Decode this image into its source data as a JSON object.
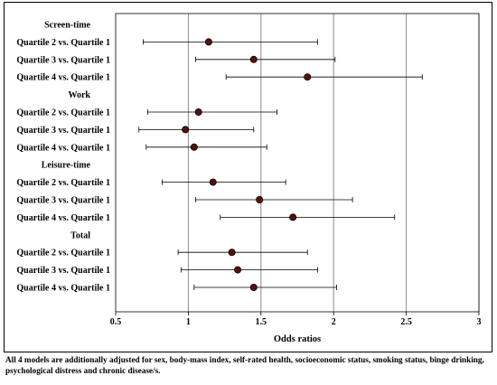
{
  "chart_data": {
    "type": "forest",
    "xlabel": "Odds ratios",
    "xlim": [
      0.5,
      3
    ],
    "xticks": [
      "0.5",
      "1",
      "1.5",
      "2",
      "2.5",
      "3"
    ],
    "reference_line": 1,
    "grid": "vertical",
    "marker_color": "#5a0f0f",
    "rows": [
      {
        "label": "Screen-time",
        "header": true
      },
      {
        "label": "Quartile 2 vs. Quartile 1",
        "or": 1.14,
        "lo": 0.69,
        "hi": 1.89
      },
      {
        "label": "Quartile 3 vs. Quartile 1",
        "or": 1.45,
        "lo": 1.05,
        "hi": 2.01
      },
      {
        "label": "Quartile 4 vs. Quartile 1",
        "or": 1.82,
        "lo": 1.26,
        "hi": 2.61
      },
      {
        "label": "Work",
        "header": true
      },
      {
        "label": "Quartile 2 vs. Quartile 1",
        "or": 1.07,
        "lo": 0.72,
        "hi": 1.61
      },
      {
        "label": "Quartile 3 vs. Quartile 1",
        "or": 0.98,
        "lo": 0.66,
        "hi": 1.45
      },
      {
        "label": "Quartile 4 vs. Quartile 1",
        "or": 1.04,
        "lo": 0.71,
        "hi": 1.54
      },
      {
        "label": "Leisure-time",
        "header": true
      },
      {
        "label": "Quartile 2 vs. Quartile 1",
        "or": 1.17,
        "lo": 0.82,
        "hi": 1.67
      },
      {
        "label": "Quartile 3 vs. Quartile 1",
        "or": 1.49,
        "lo": 1.05,
        "hi": 2.13
      },
      {
        "label": "Quartile 4 vs. Quartile 1",
        "or": 1.72,
        "lo": 1.22,
        "hi": 2.42
      },
      {
        "label": "Total",
        "header": true
      },
      {
        "label": "Quartile 2 vs. Quartile 1",
        "or": 1.3,
        "lo": 0.93,
        "hi": 1.82
      },
      {
        "label": "Quartile 3 vs. Quartile 1",
        "or": 1.34,
        "lo": 0.95,
        "hi": 1.89
      },
      {
        "label": "Quartile 4 vs. Quartile 1",
        "or": 1.45,
        "lo": 1.04,
        "hi": 2.02
      }
    ]
  },
  "footnote": "All 4 models are additionally adjusted for sex, body-mass index, self-rated health, socioeconomic status, smoking status, binge drinking, psychological distress and chronic disease/s."
}
